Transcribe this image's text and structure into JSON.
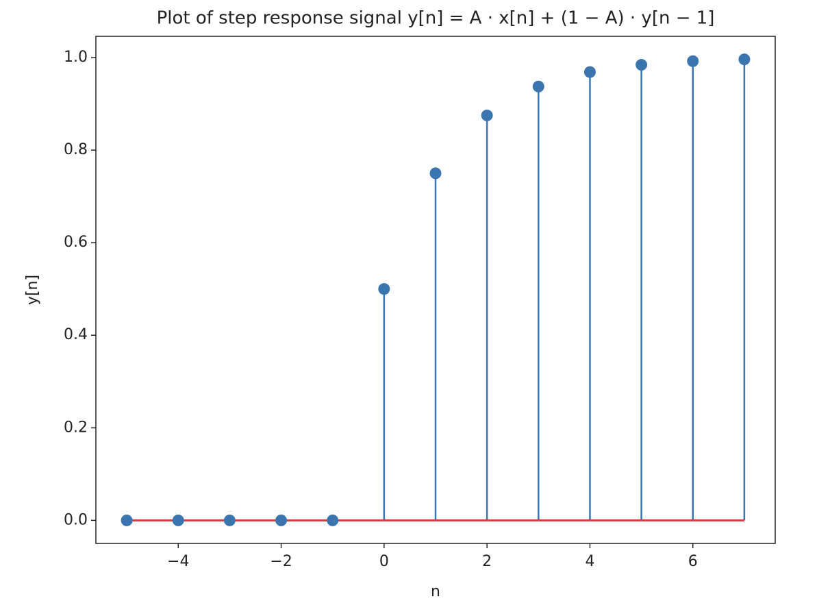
{
  "chart_data": {
    "type": "stem",
    "title": "Plot of step response signal y[n] = A · x[n] + (1 − A) · y[n − 1]",
    "x_label": "n",
    "y_label": "y[n]",
    "x": [
      -5,
      -4,
      -3,
      -2,
      -1,
      0,
      1,
      2,
      3,
      4,
      5,
      6,
      7
    ],
    "values": [
      0,
      0,
      0,
      0,
      0,
      0.5,
      0.75,
      0.875,
      0.9375,
      0.96875,
      0.984375,
      0.9921875,
      0.99609375
    ],
    "color": "#3a75b0",
    "baseline": 0,
    "baseline_color": "#d0403a",
    "xlim": [
      -5.6,
      7.6
    ],
    "xticks": [
      {
        "value": -4,
        "label": "−4"
      },
      {
        "value": -2,
        "label": "−2"
      },
      0,
      2,
      4,
      6
    ],
    "ylim": [
      -0.0498,
      1.0459
    ],
    "yticks": [
      {
        "value": 0,
        "label": "0.0"
      },
      0.2,
      0.4,
      0.6,
      0.8,
      {
        "value": 1,
        "label": "1.0"
      }
    ]
  }
}
